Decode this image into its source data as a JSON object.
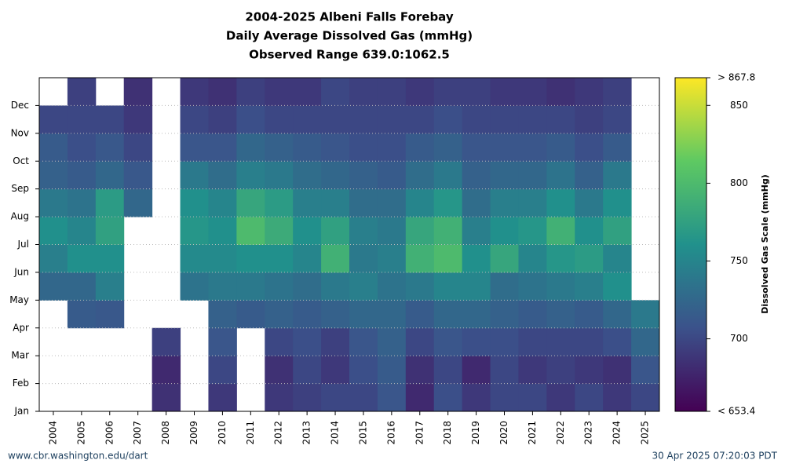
{
  "chart_data": {
    "type": "heatmap",
    "title": "2004-2025 Albeni Falls Forebay",
    "subtitle": "Daily Average Dissolved Gas (mmHg)",
    "annotation": "Observed Range 639.0:1062.5",
    "categories": [
      "2004",
      "2005",
      "2006",
      "2007",
      "2008",
      "2009",
      "2010",
      "2011",
      "2012",
      "2013",
      "2014",
      "2015",
      "2016",
      "2017",
      "2018",
      "2019",
      "2020",
      "2021",
      "2022",
      "2023",
      "2024",
      "2025"
    ],
    "y_categories": [
      "Jan",
      "Feb",
      "Mar",
      "Apr",
      "May",
      "Jun",
      "Jul",
      "Aug",
      "Sep",
      "Oct",
      "Nov",
      "Dec"
    ],
    "values": [
      [
        null,
        null,
        null,
        null,
        725,
        745,
        760,
        740,
        720,
        715,
        700,
        null
      ],
      [
        null,
        null,
        null,
        715,
        725,
        760,
        750,
        735,
        715,
        705,
        700,
        695
      ],
      [
        null,
        null,
        null,
        712,
        745,
        760,
        775,
        770,
        725,
        712,
        700,
        null
      ],
      [
        null,
        null,
        null,
        null,
        null,
        null,
        null,
        725,
        712,
        700,
        690,
        685
      ],
      [
        685,
        680,
        695,
        null,
        null,
        null,
        null,
        null,
        null,
        null,
        null,
        null
      ],
      [
        null,
        null,
        null,
        null,
        735,
        755,
        765,
        760,
        740,
        710,
        700,
        690
      ],
      [
        690,
        700,
        710,
        720,
        740,
        755,
        760,
        750,
        730,
        710,
        695,
        685
      ],
      [
        null,
        null,
        null,
        715,
        740,
        760,
        800,
        780,
        745,
        725,
        705,
        695
      ],
      [
        690,
        685,
        700,
        720,
        735,
        760,
        785,
        770,
        740,
        720,
        700,
        690
      ],
      [
        695,
        700,
        705,
        715,
        730,
        750,
        760,
        745,
        730,
        715,
        700,
        690
      ],
      [
        700,
        690,
        695,
        720,
        740,
        790,
        775,
        745,
        725,
        710,
        700,
        700
      ],
      [
        700,
        705,
        710,
        725,
        745,
        740,
        745,
        730,
        720,
        705,
        700,
        695
      ],
      [
        710,
        715,
        720,
        725,
        735,
        745,
        740,
        730,
        715,
        705,
        700,
        695
      ],
      [
        680,
        685,
        700,
        715,
        740,
        790,
        780,
        750,
        730,
        715,
        700,
        690
      ],
      [
        705,
        700,
        710,
        725,
        750,
        800,
        790,
        765,
        740,
        720,
        705,
        695
      ],
      [
        690,
        680,
        705,
        725,
        750,
        760,
        745,
        730,
        720,
        710,
        700,
        695
      ],
      [
        700,
        700,
        705,
        720,
        730,
        780,
        760,
        745,
        725,
        710,
        700,
        690
      ],
      [
        700,
        690,
        700,
        715,
        735,
        750,
        765,
        745,
        725,
        710,
        700,
        690
      ],
      [
        690,
        695,
        700,
        720,
        740,
        765,
        790,
        760,
        735,
        715,
        700,
        685
      ],
      [
        700,
        690,
        700,
        715,
        745,
        770,
        760,
        740,
        720,
        705,
        695,
        690
      ],
      [
        690,
        685,
        705,
        725,
        760,
        750,
        775,
        760,
        740,
        715,
        700,
        695
      ],
      [
        700,
        710,
        725,
        740,
        null,
        null,
        null,
        null,
        null,
        null,
        null,
        null
      ]
    ],
    "clim": [
      653.4,
      867.8
    ],
    "cticks": [
      {
        "value": 653.4,
        "label": "< 653.4"
      },
      700,
      750,
      800,
      850,
      {
        "value": 867.8,
        "label": "> 867.8"
      }
    ],
    "colorbar_label": "Dissolved Gas Scale (mmHg)",
    "colormap": [
      "#440154",
      "#3b528b",
      "#21918c",
      "#5ec962",
      "#fde725"
    ],
    "grid": true,
    "footer_left": "www.cbr.washington.edu/dart",
    "footer_right": "30 Apr 2025 07:20:03 PDT"
  }
}
